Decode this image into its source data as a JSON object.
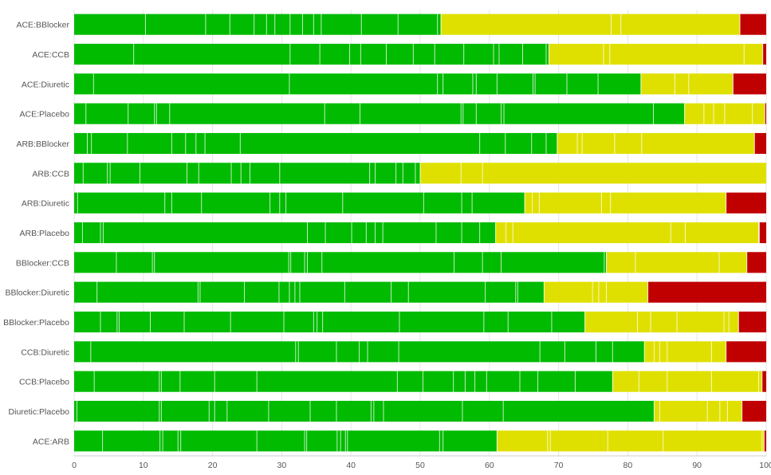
{
  "chart_data": {
    "type": "bar",
    "orientation": "horizontal",
    "stacked": true,
    "xlim": [
      0,
      100
    ],
    "xticks": [
      0,
      10,
      20,
      30,
      40,
      50,
      60,
      70,
      80,
      90,
      100
    ],
    "grid": true,
    "legend": "none",
    "colors": {
      "green": "#00bb00",
      "yellow": "#e0e000",
      "red": "#c00000"
    },
    "categories": [
      "ACE:BBlocker",
      "ACE:CCB",
      "ACE:Diuretic",
      "ACE:Placebo",
      "ARB:BBlocker",
      "ARB:CCB",
      "ARB:Diuretic",
      "ARB:Placebo",
      "BBlocker:CCB",
      "BBlocker:Diuretic",
      "BBlocker:Placebo",
      "CCB:Diuretic",
      "CCB:Placebo",
      "Diuretic:Placebo",
      "ACE:ARB"
    ],
    "rows": [
      {
        "label": "ACE:BBlocker",
        "green": 53.0,
        "yellow": 43.2,
        "red": 3.8,
        "green_splits": [
          10.3,
          19.0,
          22.5,
          26.0,
          27.8,
          29.0,
          31.2,
          33.0,
          34.6,
          35.7,
          41.5,
          46.8,
          52.5
        ],
        "yellow_splits": [
          77.6,
          79.0
        ]
      },
      {
        "label": "ACE:CCB",
        "green": 68.6,
        "yellow": 30.9,
        "red": 0.5,
        "green_splits": [
          8.6,
          31.2,
          35.5,
          39.8,
          41.4,
          45.1,
          49.0,
          52.1,
          56.3,
          60.6,
          61.4,
          64.8,
          68.2
        ],
        "yellow_splits": [
          76.5,
          77.4,
          96.8
        ]
      },
      {
        "label": "ACE:Diuretic",
        "green": 81.9,
        "yellow": 13.3,
        "red": 4.8,
        "green_splits": [
          2.8,
          31.1,
          52.5,
          53.3,
          57.6,
          58.1,
          61.1,
          66.3,
          66.6,
          71.2,
          75.7
        ],
        "yellow_splits": [
          86.8,
          88.8
        ]
      },
      {
        "label": "ACE:Placebo",
        "green": 88.2,
        "yellow": 11.6,
        "red": 0.2,
        "green_splits": [
          1.7,
          7.8,
          11.6,
          11.9,
          13.8,
          36.2,
          41.3,
          55.9,
          56.2,
          58.1,
          61.7,
          62.1,
          83.7
        ],
        "yellow_splits": [
          91.0,
          92.4,
          94.0,
          98.0
        ]
      },
      {
        "label": "ARB:BBlocker",
        "green": 69.8,
        "yellow": 28.5,
        "red": 1.7,
        "green_splits": [
          1.9,
          2.5,
          7.7,
          14.1,
          16.1,
          17.6,
          18.9,
          24.0,
          58.6,
          62.3,
          66.1,
          68.2
        ],
        "yellow_splits": [
          72.7,
          73.4,
          78.1,
          82.0
        ]
      },
      {
        "label": "ARB:CCB",
        "green": 50.0,
        "yellow": 50.0,
        "red": 0,
        "green_splits": [
          1.3,
          4.8,
          5.2,
          9.5,
          16.3,
          18.0,
          22.7,
          24.1,
          25.4,
          29.7,
          42.7,
          43.5,
          46.5,
          47.5,
          49.3
        ],
        "yellow_splits": [
          55.9,
          59.0
        ]
      },
      {
        "label": "ARB:Diuretic",
        "green": 65.1,
        "yellow": 29.1,
        "red": 5.8,
        "green_splits": [
          0.5,
          13.1,
          14.1,
          18.4,
          28.3,
          29.7,
          30.6,
          38.8,
          50.5,
          56.0,
          57.5
        ],
        "yellow_splits": [
          66.2,
          67.2,
          76.2,
          77.5
        ]
      },
      {
        "label": "ARB:Placebo",
        "green": 60.9,
        "yellow": 38.1,
        "red": 1.0,
        "green_splits": [
          1.2,
          3.8,
          4.2,
          33.7,
          36.3,
          40.1,
          42.2,
          43.5,
          44.6,
          52.3,
          56.0,
          58.6
        ],
        "yellow_splits": [
          62.4,
          63.4,
          86.2,
          88.3,
          98.9
        ]
      },
      {
        "label": "BBlocker:CCB",
        "green": 76.9,
        "yellow": 20.3,
        "red": 2.8,
        "green_splits": [
          6.1,
          11.3,
          11.6,
          31.0,
          31.3,
          33.3,
          33.7,
          35.8,
          54.9,
          59.0,
          61.7,
          76.6
        ],
        "yellow_splits": [
          81.1,
          93.2
        ]
      },
      {
        "label": "BBlocker:Diuretic",
        "green": 67.9,
        "yellow": 15.0,
        "red": 17.1,
        "green_splits": [
          3.3,
          17.9,
          18.2,
          24.6,
          29.6,
          31.1,
          31.9,
          32.6,
          39.1,
          45.8,
          48.3,
          59.4,
          63.8,
          64.1
        ],
        "yellow_splits": [
          74.9,
          75.8,
          76.9
        ]
      },
      {
        "label": "BBlocker:Placebo",
        "green": 73.8,
        "yellow": 22.2,
        "red": 4.0,
        "green_splits": [
          3.8,
          6.2,
          6.5,
          11.0,
          15.9,
          22.6,
          30.3,
          34.6,
          35.1,
          35.9,
          47.0,
          59.2,
          62.7,
          69.0
        ],
        "yellow_splits": [
          81.4,
          83.3,
          87.1,
          93.9,
          94.6
        ]
      },
      {
        "label": "CCB:Diuretic",
        "green": 82.4,
        "yellow": 11.8,
        "red": 5.8,
        "green_splits": [
          2.4,
          32.0,
          32.4,
          37.9,
          41.2,
          42.4,
          46.9,
          67.3,
          70.9,
          75.4,
          77.8
        ],
        "yellow_splits": [
          83.8,
          84.6,
          85.7,
          92.1
        ]
      },
      {
        "label": "CCB:Placebo",
        "green": 77.8,
        "yellow": 21.6,
        "red": 0.6,
        "green_splits": [
          2.9,
          12.3,
          12.6,
          15.3,
          20.3,
          26.4,
          46.7,
          50.4,
          54.8,
          56.5,
          57.9,
          59.6,
          64.4,
          67.0,
          72.4
        ],
        "yellow_splits": [
          81.6,
          85.7,
          92.1,
          98.9
        ]
      },
      {
        "label": "Diuretic:Placebo",
        "green": 83.8,
        "yellow": 12.7,
        "red": 3.5,
        "green_splits": [
          0.4,
          12.3,
          12.6,
          19.5,
          20.3,
          22.1,
          28.1,
          34.1,
          37.9,
          42.9,
          43.3,
          44.7,
          56.1,
          62.0
        ],
        "yellow_splits": [
          84.6,
          91.5,
          93.3,
          94.4
        ]
      },
      {
        "label": "ACE:ARB",
        "green": 61.1,
        "yellow": 38.6,
        "red": 0.3,
        "green_splits": [
          4.1,
          12.4,
          12.8,
          15.0,
          15.4,
          26.4,
          33.3,
          33.6,
          38.0,
          38.5,
          39.2,
          39.5,
          52.8,
          53.3
        ],
        "yellow_splits": [
          68.4,
          68.8,
          77.1,
          85.1,
          99.4
        ]
      }
    ]
  }
}
